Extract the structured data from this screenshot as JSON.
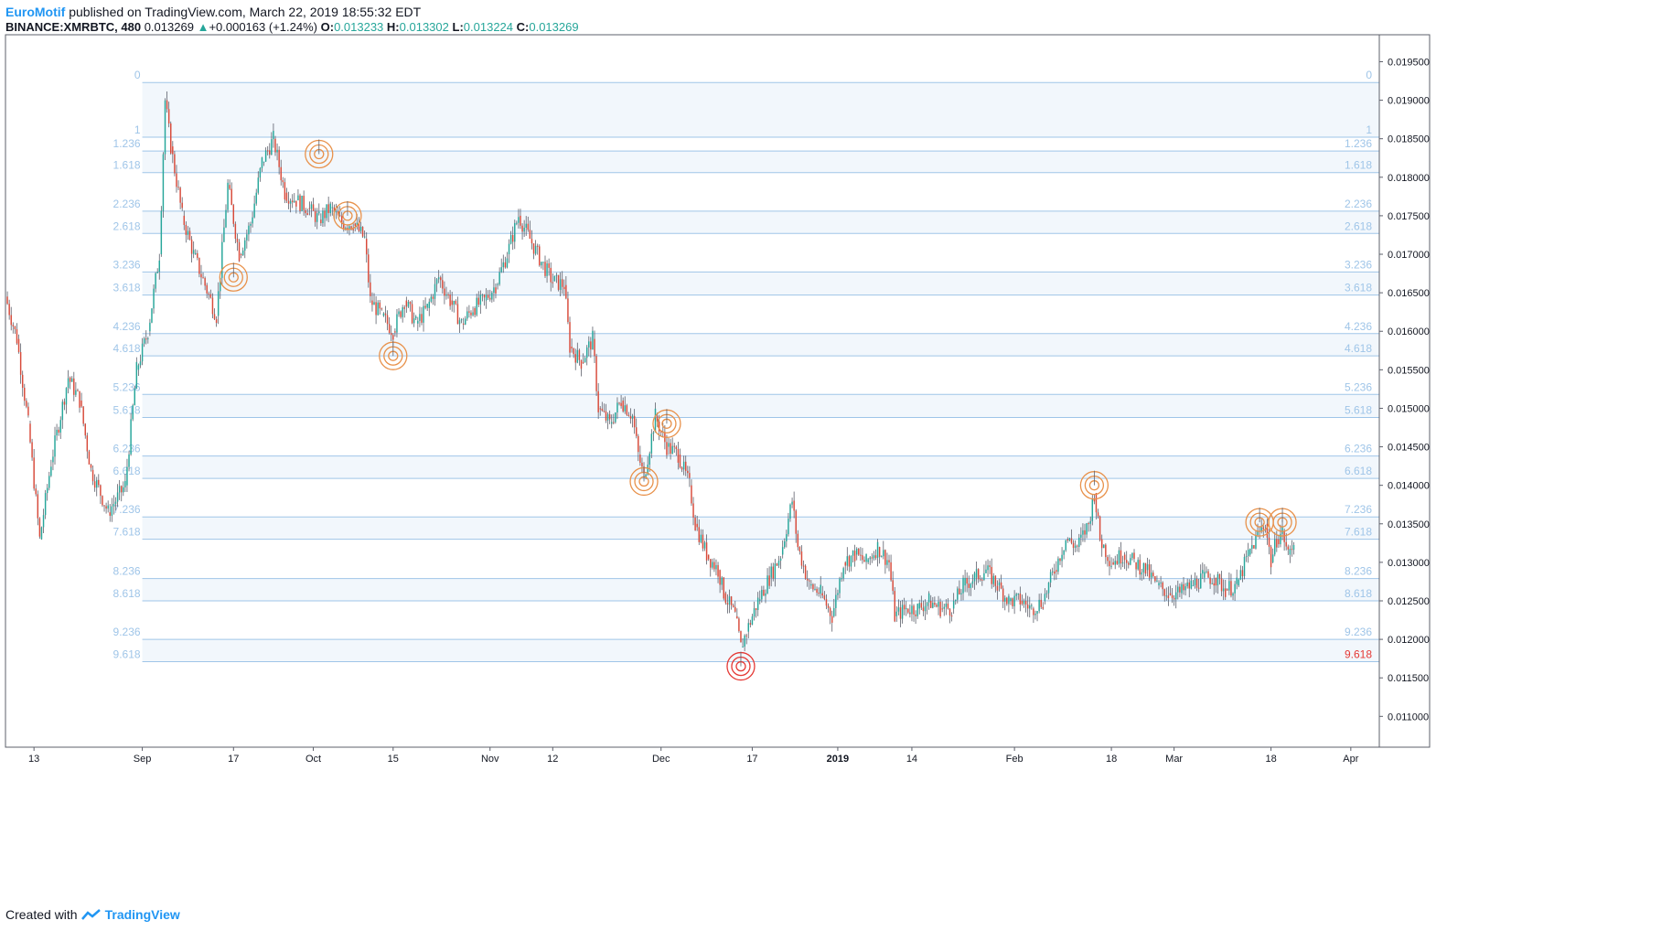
{
  "header": {
    "author": "EuroMotif",
    "published": "published on TradingView.com, March 22, 2019 18:55:32 EDT",
    "symbol": "BINANCE:XMRBTC, 480",
    "last": "0.013269",
    "change_arrow": "▲",
    "change": "+0.000163 (+1.24%)",
    "o_label": "O:",
    "o_value": "0.013233",
    "h_label": "H:",
    "h_value": "0.013302",
    "l_label": "L:",
    "l_value": "0.013224",
    "c_label": "C:",
    "c_value": "0.013269"
  },
  "footer": {
    "created": "Created with",
    "brand": "TradingView"
  },
  "colors": {
    "up": "#26a69a",
    "down": "#d84a3a",
    "wick": "#5d606b",
    "fib_line": "#9fc5e8",
    "fib_text": "#9fc5e8",
    "fib_fill": "#f2f7fc",
    "circle": "#e8914a",
    "circle_low": "#e53935",
    "label_low": "#e53935",
    "axis": "#131722",
    "grid": "#e6e6e6"
  },
  "chart_data": {
    "type": "candlestick",
    "title": "",
    "y_range": [
      0.0106,
      0.01985
    ],
    "y_ticks": [
      "0.011000",
      "0.011500",
      "0.012000",
      "0.012500",
      "0.013000",
      "0.013500",
      "0.014000",
      "0.014500",
      "0.015000",
      "0.015500",
      "0.016000",
      "0.016500",
      "0.017000",
      "0.017500",
      "0.018000",
      "0.018500",
      "0.019000",
      "0.019500"
    ],
    "x_range": [
      "2018-08-08",
      "2019-04-06"
    ],
    "x_ticks": [
      {
        "label": "13",
        "date": "2018-08-13",
        "bold": false
      },
      {
        "label": "Sep",
        "date": "2018-09-01",
        "bold": false
      },
      {
        "label": "17",
        "date": "2018-09-17",
        "bold": false
      },
      {
        "label": "Oct",
        "date": "2018-10-01",
        "bold": false
      },
      {
        "label": "15",
        "date": "2018-10-15",
        "bold": false
      },
      {
        "label": "Nov",
        "date": "2018-11-01",
        "bold": false
      },
      {
        "label": "12",
        "date": "2018-11-12",
        "bold": false
      },
      {
        "label": "Dec",
        "date": "2018-12-01",
        "bold": false
      },
      {
        "label": "17",
        "date": "2018-12-17",
        "bold": false
      },
      {
        "label": "2019",
        "date": "2019-01-01",
        "bold": true
      },
      {
        "label": "14",
        "date": "2019-01-14",
        "bold": false
      },
      {
        "label": "Feb",
        "date": "2019-02-01",
        "bold": false
      },
      {
        "label": "18",
        "date": "2019-02-18",
        "bold": false
      },
      {
        "label": "Mar",
        "date": "2019-03-01",
        "bold": false
      },
      {
        "label": "18",
        "date": "2019-03-18",
        "bold": false
      },
      {
        "label": "Apr",
        "date": "2019-04-01",
        "bold": false
      }
    ],
    "fib_levels": [
      {
        "label": "0",
        "price": 0.01923
      },
      {
        "label": "1",
        "price": 0.01852
      },
      {
        "label": "1.236",
        "price": 0.01834
      },
      {
        "label": "1.618",
        "price": 0.01806
      },
      {
        "label": "2.236",
        "price": 0.01756
      },
      {
        "label": "2.618",
        "price": 0.01727
      },
      {
        "label": "3.236",
        "price": 0.01677
      },
      {
        "label": "3.618",
        "price": 0.01647
      },
      {
        "label": "4.236",
        "price": 0.01597
      },
      {
        "label": "4.618",
        "price": 0.01568
      },
      {
        "label": "5.236",
        "price": 0.01518
      },
      {
        "label": "5.618",
        "price": 0.01488
      },
      {
        "label": "6.236",
        "price": 0.01438
      },
      {
        "label": "6.618",
        "price": 0.01409
      },
      {
        "label": "7.236",
        "price": 0.01359
      },
      {
        "label": "7.618",
        "price": 0.0133
      },
      {
        "label": "8.236",
        "price": 0.01279
      },
      {
        "label": "8.618",
        "price": 0.0125
      },
      {
        "label": "9.236",
        "price": 0.012
      },
      {
        "label": "9.618",
        "price": 0.01171
      }
    ],
    "fib_start_date": "2018-09-01",
    "highlight_label": "9.618",
    "ohlc": [
      {
        "date": "2018-08-08",
        "price": 0.01645
      },
      {
        "date": "2018-08-10",
        "price": 0.0159
      },
      {
        "date": "2018-08-12",
        "price": 0.0148
      },
      {
        "date": "2018-08-14",
        "price": 0.0133
      },
      {
        "date": "2018-08-16",
        "price": 0.0143
      },
      {
        "date": "2018-08-19",
        "price": 0.0154
      },
      {
        "date": "2018-08-21",
        "price": 0.0151
      },
      {
        "date": "2018-08-23",
        "price": 0.0142
      },
      {
        "date": "2018-08-26",
        "price": 0.01365
      },
      {
        "date": "2018-08-29",
        "price": 0.014
      },
      {
        "date": "2018-08-31",
        "price": 0.0155
      },
      {
        "date": "2018-09-02",
        "price": 0.016
      },
      {
        "date": "2018-09-04",
        "price": 0.017
      },
      {
        "date": "2018-09-05",
        "price": 0.019
      },
      {
        "date": "2018-09-06",
        "price": 0.0184
      },
      {
        "date": "2018-09-08",
        "price": 0.0175
      },
      {
        "date": "2018-09-10",
        "price": 0.017
      },
      {
        "date": "2018-09-12",
        "price": 0.0166
      },
      {
        "date": "2018-09-14",
        "price": 0.0162
      },
      {
        "date": "2018-09-16",
        "price": 0.0179
      },
      {
        "date": "2018-09-18",
        "price": 0.017
      },
      {
        "date": "2018-09-20",
        "price": 0.0174
      },
      {
        "date": "2018-09-22",
        "price": 0.0182
      },
      {
        "date": "2018-09-24",
        "price": 0.0185
      },
      {
        "date": "2018-09-26",
        "price": 0.0178
      },
      {
        "date": "2018-09-28",
        "price": 0.0177
      },
      {
        "date": "2018-09-30",
        "price": 0.0176
      },
      {
        "date": "2018-10-02",
        "price": 0.01745
      },
      {
        "date": "2018-10-04",
        "price": 0.0176
      },
      {
        "date": "2018-10-06",
        "price": 0.0174
      },
      {
        "date": "2018-10-08",
        "price": 0.0174
      },
      {
        "date": "2018-10-10",
        "price": 0.0172
      },
      {
        "date": "2018-10-11",
        "price": 0.0164
      },
      {
        "date": "2018-10-13",
        "price": 0.0162
      },
      {
        "date": "2018-10-15",
        "price": 0.016
      },
      {
        "date": "2018-10-17",
        "price": 0.0164
      },
      {
        "date": "2018-10-19",
        "price": 0.0161
      },
      {
        "date": "2018-10-21",
        "price": 0.0163
      },
      {
        "date": "2018-10-23",
        "price": 0.0167
      },
      {
        "date": "2018-10-25",
        "price": 0.0164
      },
      {
        "date": "2018-10-27",
        "price": 0.0161
      },
      {
        "date": "2018-10-29",
        "price": 0.0163
      },
      {
        "date": "2018-10-31",
        "price": 0.0164
      },
      {
        "date": "2018-11-02",
        "price": 0.0166
      },
      {
        "date": "2018-11-04",
        "price": 0.017
      },
      {
        "date": "2018-11-06",
        "price": 0.0175
      },
      {
        "date": "2018-11-08",
        "price": 0.0172
      },
      {
        "date": "2018-11-10",
        "price": 0.0169
      },
      {
        "date": "2018-11-12",
        "price": 0.01665
      },
      {
        "date": "2018-11-14",
        "price": 0.0166
      },
      {
        "date": "2018-11-15",
        "price": 0.0158
      },
      {
        "date": "2018-11-17",
        "price": 0.0156
      },
      {
        "date": "2018-11-19",
        "price": 0.0159
      },
      {
        "date": "2018-11-20",
        "price": 0.015
      },
      {
        "date": "2018-11-22",
        "price": 0.0148
      },
      {
        "date": "2018-11-24",
        "price": 0.0151
      },
      {
        "date": "2018-11-26",
        "price": 0.0149
      },
      {
        "date": "2018-11-27",
        "price": 0.0144
      },
      {
        "date": "2018-11-28",
        "price": 0.0141
      },
      {
        "date": "2018-11-30",
        "price": 0.0149
      },
      {
        "date": "2018-12-02",
        "price": 0.0145
      },
      {
        "date": "2018-12-04",
        "price": 0.0144
      },
      {
        "date": "2018-12-06",
        "price": 0.014
      },
      {
        "date": "2018-12-07",
        "price": 0.0135
      },
      {
        "date": "2018-12-09",
        "price": 0.0131
      },
      {
        "date": "2018-12-11",
        "price": 0.0129
      },
      {
        "date": "2018-12-12",
        "price": 0.0126
      },
      {
        "date": "2018-12-14",
        "price": 0.0123
      },
      {
        "date": "2018-12-15",
        "price": 0.0119
      },
      {
        "date": "2018-12-16",
        "price": 0.0121
      },
      {
        "date": "2018-12-18",
        "price": 0.0125
      },
      {
        "date": "2018-12-20",
        "price": 0.0128
      },
      {
        "date": "2018-12-22",
        "price": 0.0131
      },
      {
        "date": "2018-12-24",
        "price": 0.0138
      },
      {
        "date": "2018-12-25",
        "price": 0.0132
      },
      {
        "date": "2018-12-27",
        "price": 0.0127
      },
      {
        "date": "2018-12-29",
        "price": 0.0126
      },
      {
        "date": "2018-12-31",
        "price": 0.0123
      },
      {
        "date": "2019-01-02",
        "price": 0.013
      },
      {
        "date": "2019-01-04",
        "price": 0.0131
      },
      {
        "date": "2019-01-06",
        "price": 0.013
      },
      {
        "date": "2019-01-08",
        "price": 0.0132
      },
      {
        "date": "2019-01-10",
        "price": 0.013
      },
      {
        "date": "2019-01-11",
        "price": 0.0123
      },
      {
        "date": "2019-01-13",
        "price": 0.0124
      },
      {
        "date": "2019-01-15",
        "price": 0.0124
      },
      {
        "date": "2019-01-17",
        "price": 0.0125
      },
      {
        "date": "2019-01-19",
        "price": 0.0124
      },
      {
        "date": "2019-01-21",
        "price": 0.0124
      },
      {
        "date": "2019-01-23",
        "price": 0.0127
      },
      {
        "date": "2019-01-25",
        "price": 0.0128
      },
      {
        "date": "2019-01-27",
        "price": 0.0129
      },
      {
        "date": "2019-01-29",
        "price": 0.0127
      },
      {
        "date": "2019-01-31",
        "price": 0.0125
      },
      {
        "date": "2019-02-02",
        "price": 0.0125
      },
      {
        "date": "2019-02-04",
        "price": 0.0124
      },
      {
        "date": "2019-02-06",
        "price": 0.0125
      },
      {
        "date": "2019-02-08",
        "price": 0.0129
      },
      {
        "date": "2019-02-10",
        "price": 0.0133
      },
      {
        "date": "2019-02-12",
        "price": 0.0132
      },
      {
        "date": "2019-02-14",
        "price": 0.0135
      },
      {
        "date": "2019-02-15",
        "price": 0.0139
      },
      {
        "date": "2019-02-16",
        "price": 0.0133
      },
      {
        "date": "2019-02-18",
        "price": 0.013
      },
      {
        "date": "2019-02-20",
        "price": 0.0131
      },
      {
        "date": "2019-02-22",
        "price": 0.013
      },
      {
        "date": "2019-02-24",
        "price": 0.0129
      },
      {
        "date": "2019-02-26",
        "price": 0.0127
      },
      {
        "date": "2019-02-28",
        "price": 0.0126
      },
      {
        "date": "2019-03-02",
        "price": 0.0126
      },
      {
        "date": "2019-03-04",
        "price": 0.0127
      },
      {
        "date": "2019-03-06",
        "price": 0.0128
      },
      {
        "date": "2019-03-08",
        "price": 0.0128
      },
      {
        "date": "2019-03-10",
        "price": 0.01265
      },
      {
        "date": "2019-03-12",
        "price": 0.0127
      },
      {
        "date": "2019-03-14",
        "price": 0.0131
      },
      {
        "date": "2019-03-16",
        "price": 0.0134
      },
      {
        "date": "2019-03-17",
        "price": 0.0135
      },
      {
        "date": "2019-03-18",
        "price": 0.013
      },
      {
        "date": "2019-03-19",
        "price": 0.0133
      },
      {
        "date": "2019-03-20",
        "price": 0.0134
      },
      {
        "date": "2019-03-21",
        "price": 0.0131
      },
      {
        "date": "2019-03-22",
        "price": 0.013269
      }
    ],
    "highlight_circles": [
      {
        "date": "2018-09-17",
        "price": 0.0167,
        "color": "orange"
      },
      {
        "date": "2018-10-02",
        "price": 0.0183,
        "color": "orange"
      },
      {
        "date": "2018-10-07",
        "price": 0.0175,
        "color": "orange"
      },
      {
        "date": "2018-10-15",
        "price": 0.01568,
        "color": "orange"
      },
      {
        "date": "2018-11-28",
        "price": 0.01405,
        "color": "orange"
      },
      {
        "date": "2018-12-02",
        "price": 0.0148,
        "color": "orange"
      },
      {
        "date": "2018-12-15",
        "price": 0.01165,
        "color": "red"
      },
      {
        "date": "2019-02-15",
        "price": 0.014,
        "color": "orange"
      },
      {
        "date": "2019-03-16",
        "price": 0.01352,
        "color": "orange"
      },
      {
        "date": "2019-03-20",
        "price": 0.01352,
        "color": "orange"
      }
    ]
  }
}
